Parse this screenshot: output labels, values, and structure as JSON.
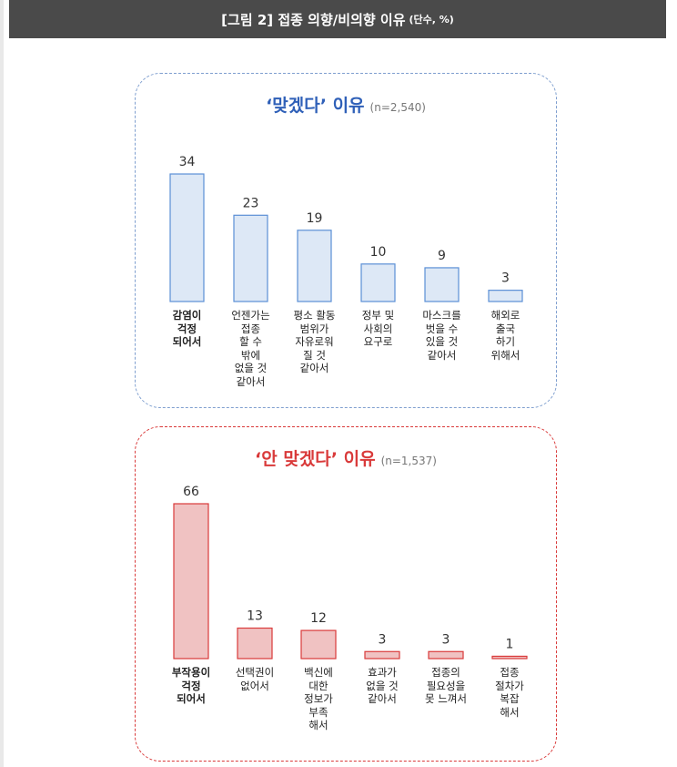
{
  "header": {
    "title": "[그림 2] 접종 의향/비의향 이유",
    "unit": "(단수, %)"
  },
  "chart_data": [
    {
      "type": "bar",
      "title": "‘맞겠다’ 이유",
      "subtitle": "(n=2,540)",
      "categories": [
        "감염이\n걱정\n되어서",
        "언젠가는\n접종\n할 수\n밖에\n없을 것\n같아서",
        "평소 활동\n범위가\n자유로워\n질 것\n같아서",
        "정부 및\n사회의\n요구로",
        "마스크를\n벗을 수\n있을 것\n같아서",
        "해외로\n출국\n하기\n위해서"
      ],
      "values": [
        34,
        23,
        19,
        10,
        9,
        3
      ],
      "value_labels": [
        "34",
        "23",
        "19",
        "10",
        "9",
        "3"
      ],
      "ylim": [
        0,
        34
      ],
      "grid": false,
      "colors": {
        "fill": "#dde8f6",
        "stroke": "#5b8fd6"
      }
    },
    {
      "type": "bar",
      "title": "‘안 맞겠다’ 이유",
      "subtitle": "(n=1,537)",
      "categories": [
        "부작용이\n걱정\n되어서",
        "선택권이\n없어서",
        "백신에\n대한\n정보가\n부족\n해서",
        "효과가\n없을 것\n같아서",
        "접종의\n필요성을\n못 느껴서",
        "접종\n절차가\n복잡\n해서"
      ],
      "values": [
        66,
        13,
        12,
        3,
        3,
        1
      ],
      "value_labels": [
        "66",
        "13",
        "12",
        "3",
        "3",
        "1"
      ],
      "ylim": [
        0,
        66
      ],
      "grid": false,
      "colors": {
        "fill": "#f0c2c2",
        "stroke": "#d93a3a"
      }
    }
  ]
}
